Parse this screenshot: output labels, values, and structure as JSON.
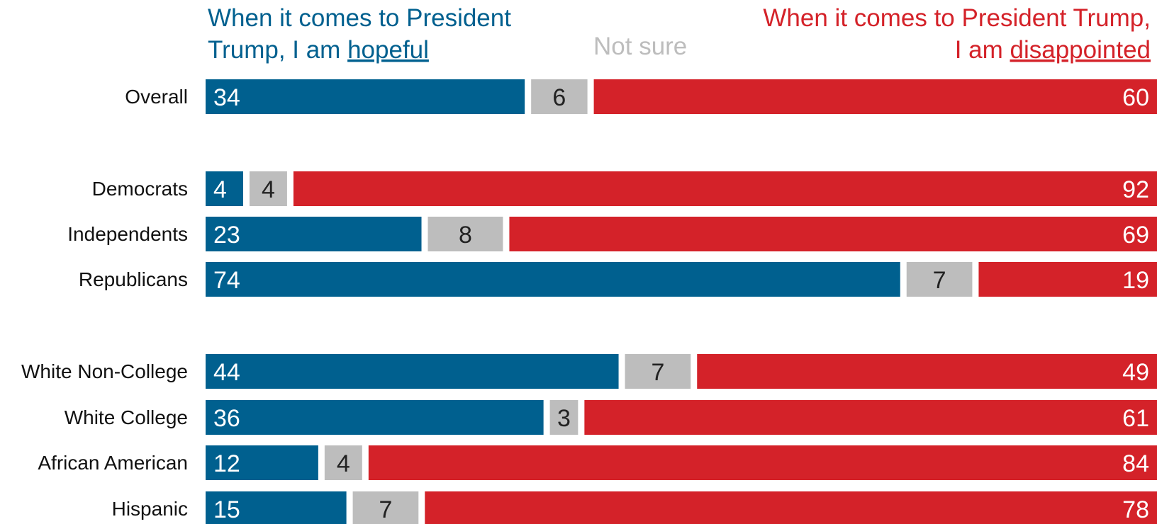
{
  "legend": {
    "hopeful_line1": "When it comes to President",
    "hopeful_line2_prefix": "Trump, I am ",
    "hopeful_emphasis": "hopeful",
    "not_sure": "Not sure",
    "disappointed_line1": "When it comes to President Trump,",
    "disappointed_line2_prefix": "I am ",
    "disappointed_emphasis": "disappointed"
  },
  "colors": {
    "hopeful": "#00608f",
    "not_sure": "#bdbdbd",
    "disappointed": "#d42229",
    "hopeful_text": "#ffffff",
    "not_sure_text": "#222222",
    "disappointed_text": "#ffffff",
    "label_text": "#111111"
  },
  "chart_data": {
    "type": "bar",
    "orientation": "horizontal",
    "stacked": true,
    "xlim": [
      0,
      100
    ],
    "grid": false,
    "legend_placement": "top",
    "categories": [
      "Overall",
      "Democrats",
      "Independents",
      "Republicans",
      "White Non-College",
      "White College",
      "African American",
      "Hispanic"
    ],
    "groups": [
      [
        "Overall"
      ],
      [
        "Democrats",
        "Independents",
        "Republicans"
      ],
      [
        "White Non-College",
        "White College",
        "African American",
        "Hispanic"
      ]
    ],
    "series": [
      {
        "name": "When it comes to President Trump, I am hopeful",
        "key": "hopeful",
        "values": [
          34,
          4,
          23,
          74,
          44,
          36,
          12,
          15
        ]
      },
      {
        "name": "Not sure",
        "key": "not_sure",
        "values": [
          6,
          4,
          8,
          7,
          7,
          3,
          4,
          7
        ]
      },
      {
        "name": "When it comes to President Trump, I am disappointed",
        "key": "disappointed",
        "values": [
          60,
          92,
          69,
          19,
          49,
          61,
          84,
          78
        ]
      }
    ]
  }
}
